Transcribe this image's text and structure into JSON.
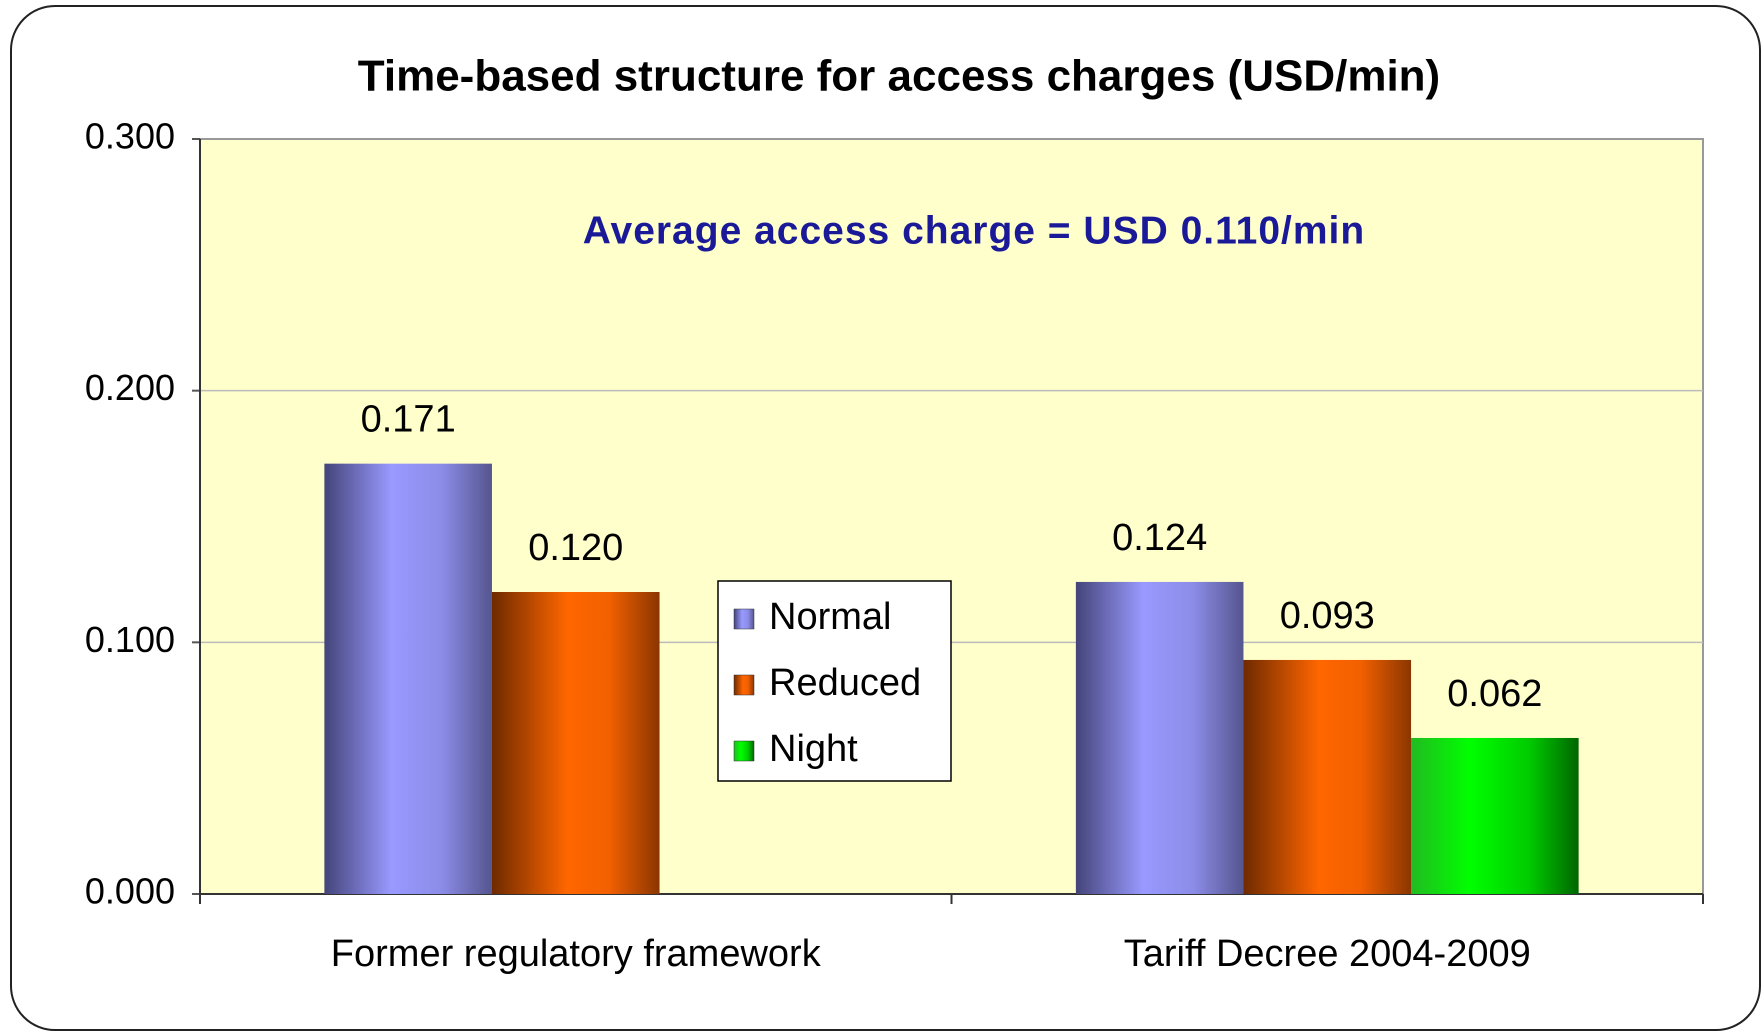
{
  "chart_data": {
    "type": "bar",
    "title": "Time-based structure for access charges (USD/min)",
    "annotation": "Average access charge = USD 0.110/min",
    "categories": [
      "Former regulatory framework",
      "Tariff Decree 2004-2009"
    ],
    "series": [
      {
        "name": "Normal",
        "color": "#9999ff",
        "values": [
          0.171,
          0.124
        ],
        "value_labels": [
          "0.171",
          "0.124"
        ]
      },
      {
        "name": "Reduced",
        "color": "#ff6600",
        "values": [
          0.12,
          0.093
        ],
        "value_labels": [
          "0.120",
          "0.093"
        ]
      },
      {
        "name": "Night",
        "color": "#00ff00",
        "values": [
          null,
          0.062
        ],
        "value_labels": [
          null,
          "0.062"
        ]
      }
    ],
    "ylim": [
      0,
      0.3
    ],
    "yticks": [
      {
        "value": 0,
        "label": "0.000"
      },
      {
        "value": 0.1,
        "label": "0.100"
      },
      {
        "value": 0.2,
        "label": "0.200"
      },
      {
        "value": 0.3,
        "label": "0.300"
      }
    ],
    "grid": true,
    "legend_position": "center"
  }
}
